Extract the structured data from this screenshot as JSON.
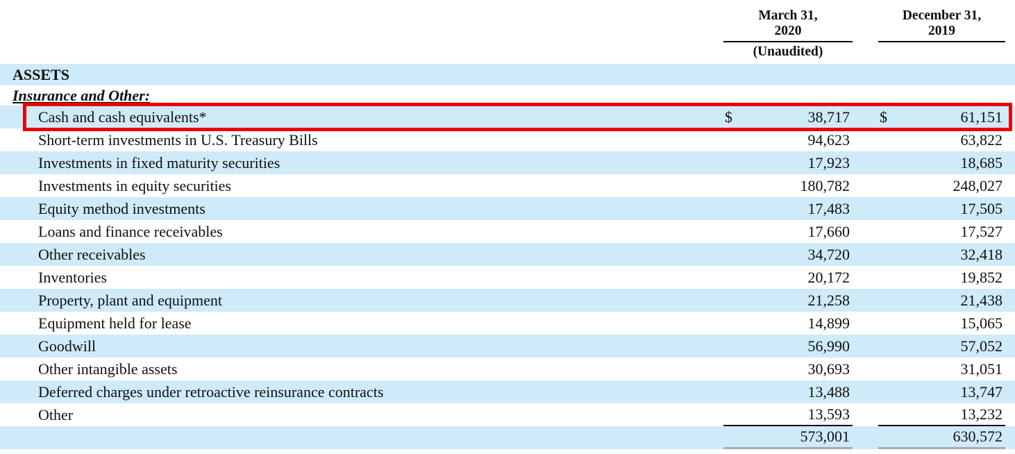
{
  "document": {
    "type": "balance-sheet-assets-section",
    "section_label": "ASSETS",
    "group_label": "Insurance and Other:"
  },
  "header": {
    "col1": {
      "line1": "March 31,",
      "line2": "2020",
      "note": "(Unaudited)"
    },
    "col2": {
      "line1": "December 31,",
      "line2": "2019",
      "note": ""
    }
  },
  "rows": [
    {
      "label": "Cash and cash equivalents*",
      "cur1": "$",
      "v2020": "38,717",
      "cur2": "$",
      "v2019": "61,151",
      "highlighted": "true"
    },
    {
      "label": "Short-term investments in U.S. Treasury Bills",
      "cur1": "",
      "v2020": "94,623",
      "cur2": "",
      "v2019": "63,822"
    },
    {
      "label": "Investments in fixed maturity securities",
      "cur1": "",
      "v2020": "17,923",
      "cur2": "",
      "v2019": "18,685"
    },
    {
      "label": "Investments in equity securities",
      "cur1": "",
      "v2020": "180,782",
      "cur2": "",
      "v2019": "248,027"
    },
    {
      "label": "Equity method investments",
      "cur1": "",
      "v2020": "17,483",
      "cur2": "",
      "v2019": "17,505"
    },
    {
      "label": "Loans and finance receivables",
      "cur1": "",
      "v2020": "17,660",
      "cur2": "",
      "v2019": "17,527"
    },
    {
      "label": "Other receivables",
      "cur1": "",
      "v2020": "34,720",
      "cur2": "",
      "v2019": "32,418"
    },
    {
      "label": "Inventories",
      "cur1": "",
      "v2020": "20,172",
      "cur2": "",
      "v2019": "19,852"
    },
    {
      "label": "Property, plant and equipment",
      "cur1": "",
      "v2020": "21,258",
      "cur2": "",
      "v2019": "21,438"
    },
    {
      "label": "Equipment held for lease",
      "cur1": "",
      "v2020": "14,899",
      "cur2": "",
      "v2019": "15,065"
    },
    {
      "label": "Goodwill",
      "cur1": "",
      "v2020": "56,990",
      "cur2": "",
      "v2019": "57,052"
    },
    {
      "label": "Other intangible assets",
      "cur1": "",
      "v2020": "30,693",
      "cur2": "",
      "v2019": "31,051"
    },
    {
      "label": "Deferred charges under retroactive reinsurance contracts",
      "cur1": "",
      "v2020": "13,488",
      "cur2": "",
      "v2019": "13,747"
    },
    {
      "label": "Other",
      "cur1": "",
      "v2020": "13,593",
      "cur2": "",
      "v2019": "13,232"
    }
  ],
  "total": {
    "label": "",
    "v2020": "573,001",
    "v2019": "630,572"
  },
  "colors": {
    "row_band": "#cfeaf8",
    "highlight_border": "#ec0000",
    "text": "#101010",
    "total_underline": "#a9a9a9"
  }
}
